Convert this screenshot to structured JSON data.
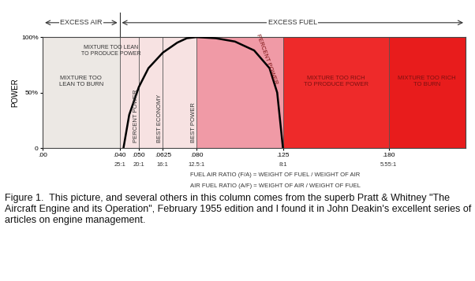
{
  "chart_data": {
    "type": "line",
    "header": {
      "left": "EXCESS AIR",
      "right": "EXCESS FUEL",
      "split": 0.04
    },
    "y_label": "POWER",
    "x_label": "FUEL AIR RATIO (F/A) = WEIGHT OF FUEL / WEIGHT OF AIR",
    "x_label_2": "AIR FUEL RATIO (A/F) = WEIGHT OF AIR / WEIGHT OF FUEL",
    "xlim": [
      0,
      0.22
    ],
    "xticks": [
      {
        "value": 0,
        "label": ".00"
      },
      {
        "value": 0.04,
        "label": ".040"
      },
      {
        "value": 0.05,
        "label": ".050"
      },
      {
        "value": 0.0625,
        "label": ".0625"
      },
      {
        "value": 0.08,
        "label": ".080"
      },
      {
        "value": 0.125,
        "label": ".125"
      },
      {
        "value": 0.18,
        "label": ".180"
      }
    ],
    "air_fuel_ticks": [
      {
        "value": 0.04,
        "label": "25:1"
      },
      {
        "value": 0.05,
        "label": "20:1"
      },
      {
        "value": 0.0625,
        "label": "16:1"
      },
      {
        "value": 0.08,
        "label": "12.5:1"
      },
      {
        "value": 0.125,
        "label": "8:1"
      },
      {
        "value": 0.18,
        "label": "5.55:1"
      }
    ],
    "ylim": [
      0,
      100
    ],
    "yticks": [
      0,
      {
        "value": 50,
        "label": "50%"
      },
      {
        "value": 100,
        "label": "100%"
      }
    ],
    "grid": false,
    "regions": [
      {
        "from": 0,
        "to": 0.04,
        "color": "#ece8e4",
        "label": "MIXTURE TOO\nLEAN TO BURN"
      },
      {
        "from": 0.04,
        "to": 0.08,
        "color": "#f7e2e2",
        "label": "MIXTURE TOO LEAN\nTO PRODUCE POWER"
      },
      {
        "from": 0.08,
        "to": 0.125,
        "color": "#f09aa6"
      },
      {
        "from": 0.125,
        "to": 0.18,
        "color": "#ee2a2a",
        "label": "MIXTURE TOO RICH\nTO PRODUCE POWER"
      },
      {
        "from": 0.18,
        "to": 0.22,
        "color": "#e81c1c",
        "label": "MIXTURE TOO RICH\nTO BURN"
      }
    ],
    "line_labels": [
      {
        "value": 0.05,
        "label": "PERCENT POWER"
      },
      {
        "value": 0.0625,
        "label": "BEST ECONOMY"
      },
      {
        "value": 0.08,
        "label": "BEST POWER"
      }
    ],
    "curve_label": "PERCENT POWER",
    "series": [
      {
        "color": "#000000",
        "x": [
          0.042,
          0.045,
          0.05,
          0.055,
          0.0625,
          0.07,
          0.075,
          0.08,
          0.09,
          0.1,
          0.11,
          0.118,
          0.122,
          0.125
        ],
        "values": [
          0,
          30,
          55,
          72,
          86,
          95,
          99,
          100,
          99,
          96,
          88,
          72,
          50,
          0
        ]
      }
    ]
  },
  "caption": "Figure 1.  This picture, and several others in this column comes from the superb Pratt & Whitney \"The Aircraft Engine and its Operation\", February 1955 edition and I found it in John Deakin's excellent series of articles on engine management."
}
